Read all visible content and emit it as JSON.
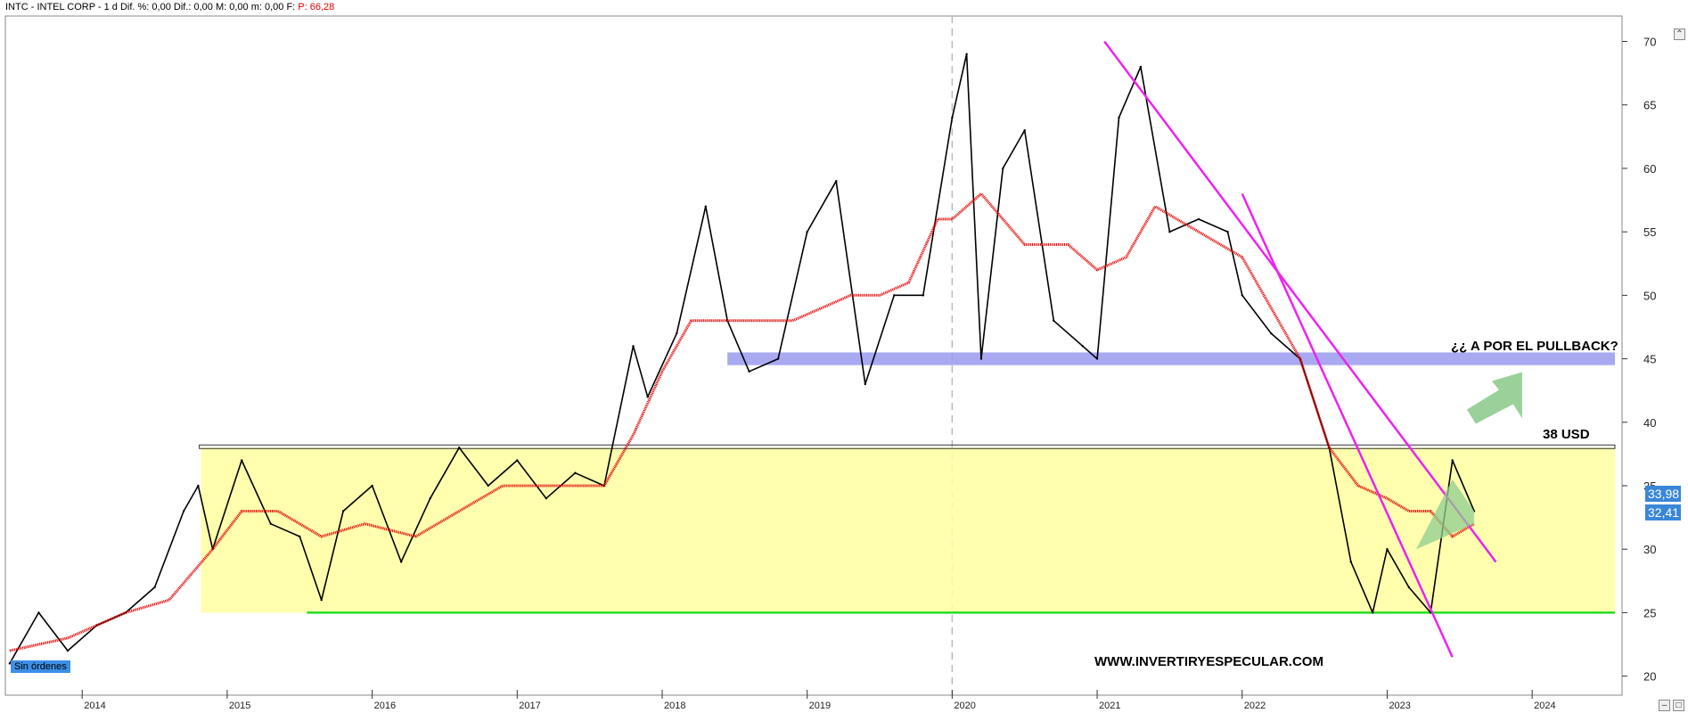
{
  "header": {
    "symbol_line": "INTC - INTEL CORP -   1 d  Dif. %: 0,00   Dif.: 0,00   M: 0,00   m: 0,00   F:",
    "p_label": "P: 66,28"
  },
  "status": {
    "orders": "Sin órdenes"
  },
  "prices": {
    "last": "33,98",
    "ma": "32,41"
  },
  "watermark": "WWW.INVERTIRYESPECULAR.COM",
  "annotations": {
    "pullback": "¿¿ A POR EL PULLBACK?",
    "level": "38 USD"
  },
  "colors": {
    "price": "#000000",
    "ma": "#e00000",
    "zone": "#ffffa0",
    "resistance_band": "#9a9af0",
    "support": "#22dd22",
    "trendline": "#ee22ee",
    "arrow": "#8fcc8f"
  },
  "chart_data": {
    "type": "line",
    "title": "",
    "xlabel": "",
    "ylabel": "",
    "x_ticks": [
      "2014",
      "2015",
      "2016",
      "2017",
      "2018",
      "2019",
      "2020",
      "2021",
      "2022",
      "2023",
      "2024"
    ],
    "y_ticks": [
      20,
      25,
      30,
      35,
      40,
      45,
      50,
      55,
      60,
      65,
      70
    ],
    "ylim": [
      18.5,
      72
    ],
    "series": [
      {
        "role": "price",
        "x": [
          2013.5,
          2013.7,
          2013.9,
          2014.1,
          2014.3,
          2014.5,
          2014.7,
          2014.8,
          2014.9,
          2015.1,
          2015.3,
          2015.5,
          2015.65,
          2015.8,
          2016.0,
          2016.2,
          2016.4,
          2016.6,
          2016.8,
          2017.0,
          2017.2,
          2017.4,
          2017.6,
          2017.8,
          2017.9,
          2018.1,
          2018.3,
          2018.45,
          2018.6,
          2018.8,
          2019.0,
          2019.2,
          2019.4,
          2019.6,
          2019.8,
          2020.0,
          2020.1,
          2020.2,
          2020.35,
          2020.5,
          2020.7,
          2020.9,
          2021.0,
          2021.15,
          2021.3,
          2021.5,
          2021.7,
          2021.9,
          2022.0,
          2022.2,
          2022.4,
          2022.6,
          2022.75,
          2022.9,
          2023.0,
          2023.15,
          2023.3,
          2023.45,
          2023.6
        ],
        "y": [
          21,
          25,
          22,
          24,
          25,
          27,
          33,
          35,
          30,
          37,
          32,
          31,
          26,
          33,
          35,
          29,
          34,
          38,
          35,
          37,
          34,
          36,
          35,
          46,
          42,
          47,
          57,
          48,
          44,
          45,
          55,
          59,
          43,
          50,
          50,
          64,
          69,
          45,
          60,
          63,
          48,
          46,
          45,
          64,
          68,
          55,
          56,
          55,
          50,
          47,
          45,
          38,
          29,
          25,
          30,
          27,
          25,
          37,
          33
        ]
      },
      {
        "role": "moving-average",
        "x": [
          2013.5,
          2013.9,
          2014.3,
          2014.6,
          2014.9,
          2015.1,
          2015.35,
          2015.65,
          2015.95,
          2016.3,
          2016.6,
          2016.9,
          2017.2,
          2017.6,
          2017.8,
          2018.0,
          2018.2,
          2018.45,
          2018.7,
          2018.9,
          2019.1,
          2019.3,
          2019.5,
          2019.7,
          2019.9,
          2020.0,
          2020.2,
          2020.5,
          2020.8,
          2021.0,
          2021.2,
          2021.4,
          2021.7,
          2022.0,
          2022.2,
          2022.4,
          2022.6,
          2022.8,
          2023.0,
          2023.15,
          2023.3,
          2023.45,
          2023.6
        ],
        "y": [
          22,
          23,
          25,
          26,
          30,
          33,
          33,
          31,
          32,
          31,
          33,
          35,
          35,
          35,
          39,
          44,
          48,
          48,
          48,
          48,
          49,
          50,
          50,
          51,
          56,
          56,
          58,
          54,
          54,
          52,
          53,
          57,
          55,
          53,
          49,
          45,
          38,
          35,
          34,
          33,
          33,
          31,
          32
        ]
      }
    ],
    "horizontal_levels": [
      {
        "name": "38 USD",
        "y": 38
      },
      {
        "name": "resistance band",
        "y_range": [
          44.5,
          45.5
        ]
      },
      {
        "name": "support",
        "y": 25
      }
    ],
    "trendlines": [
      {
        "x": [
          2021.05,
          2023.75
        ],
        "y": [
          70,
          29
        ]
      },
      {
        "x": [
          2022.0,
          2023.45
        ],
        "y": [
          58,
          21.5
        ]
      }
    ]
  }
}
